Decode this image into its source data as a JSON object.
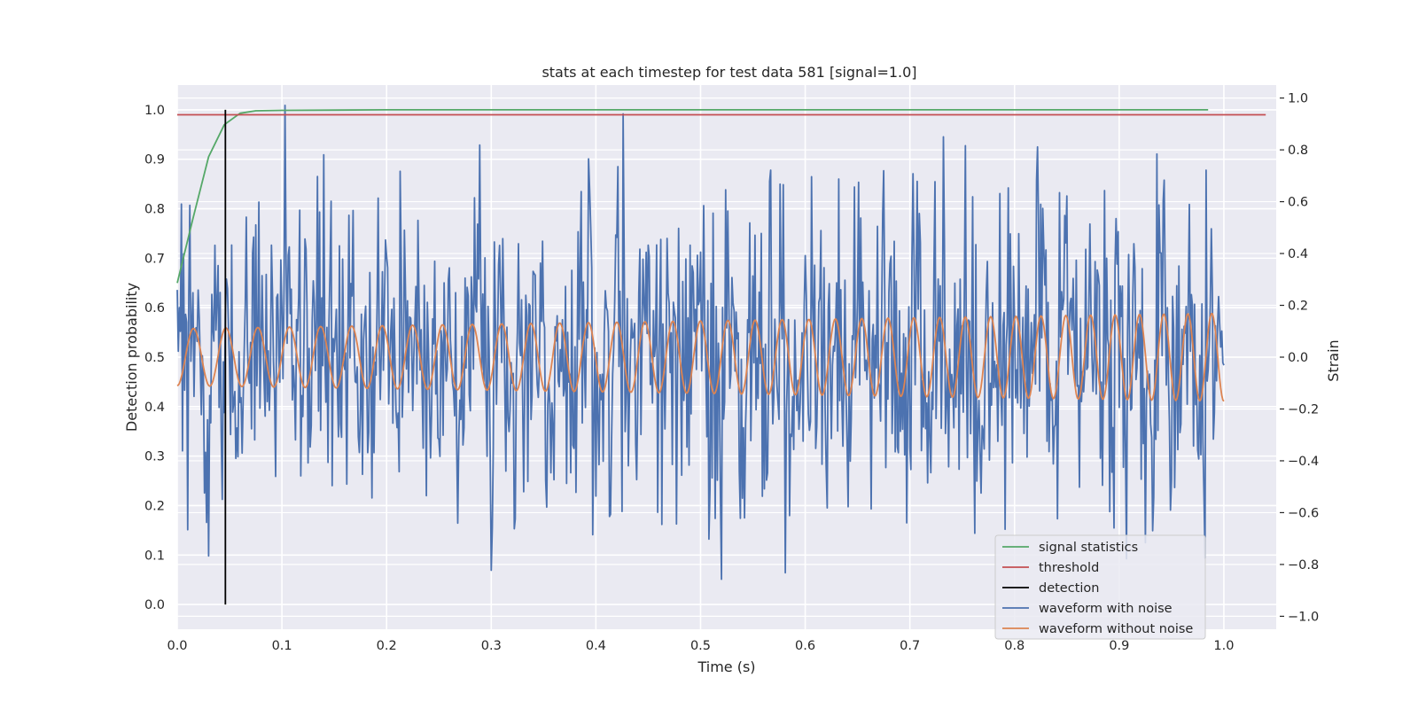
{
  "chart_data": {
    "type": "line",
    "title": "stats at each timestep for test data 581 [signal=1.0]",
    "xlabel": "Time (s)",
    "ylabel": "Detection probability",
    "y2label": "Strain",
    "xlim": [
      0.0,
      1.05
    ],
    "ylim": [
      -0.05,
      1.05
    ],
    "y2lim": [
      -1.05,
      1.05
    ],
    "xticks": [
      "0.0",
      "0.1",
      "0.2",
      "0.3",
      "0.4",
      "0.5",
      "0.6",
      "0.7",
      "0.8",
      "0.9",
      "1.0"
    ],
    "yticks": [
      "0.0",
      "0.1",
      "0.2",
      "0.3",
      "0.4",
      "0.5",
      "0.6",
      "0.7",
      "0.8",
      "0.9",
      "1.0"
    ],
    "y2ticks": [
      "−1.0",
      "−0.8",
      "−0.6",
      "−0.4",
      "−0.2",
      "0.0",
      "0.2",
      "0.4",
      "0.6",
      "0.8",
      "1.0"
    ],
    "grid": true,
    "legend_position": "bottom-right",
    "colors": {
      "signal_statistics": "#55a868",
      "threshold": "#c44e52",
      "detection": "#000000",
      "waveform_with_noise": "#4c72b0",
      "waveform_without_noise": "#dd8452",
      "plot_background": "#eaeaf2"
    },
    "legend": [
      "signal statistics",
      "threshold",
      "detection",
      "waveform with noise",
      "waveform without noise"
    ],
    "signal_statistics": {
      "axis": "left",
      "x": [
        0.0,
        0.015,
        0.03,
        0.045,
        0.06,
        0.075,
        0.1,
        0.2,
        0.4,
        0.6,
        0.8,
        0.985
      ],
      "y": [
        0.65,
        0.78,
        0.905,
        0.97,
        0.993,
        0.998,
        0.999,
        1.0,
        1.0,
        1.0,
        1.0,
        1.0
      ]
    },
    "threshold": {
      "axis": "left",
      "y": 0.99,
      "x_range": [
        0.0,
        1.04
      ]
    },
    "detection": {
      "axis": "left",
      "x": 0.046,
      "y_range": [
        0.0,
        1.0
      ]
    },
    "waveform_without_noise": {
      "axis": "right",
      "x_range": [
        0.0,
        1.0
      ],
      "amplitude_start": 0.11,
      "amplitude_end": 0.17,
      "frequency_start_hz": 32,
      "frequency_end_hz": 44
    },
    "waveform_with_noise": {
      "axis": "right",
      "x_range": [
        0.0,
        1.0
      ],
      "samples": 1000,
      "range": [
        -0.93,
        1.0
      ]
    }
  }
}
